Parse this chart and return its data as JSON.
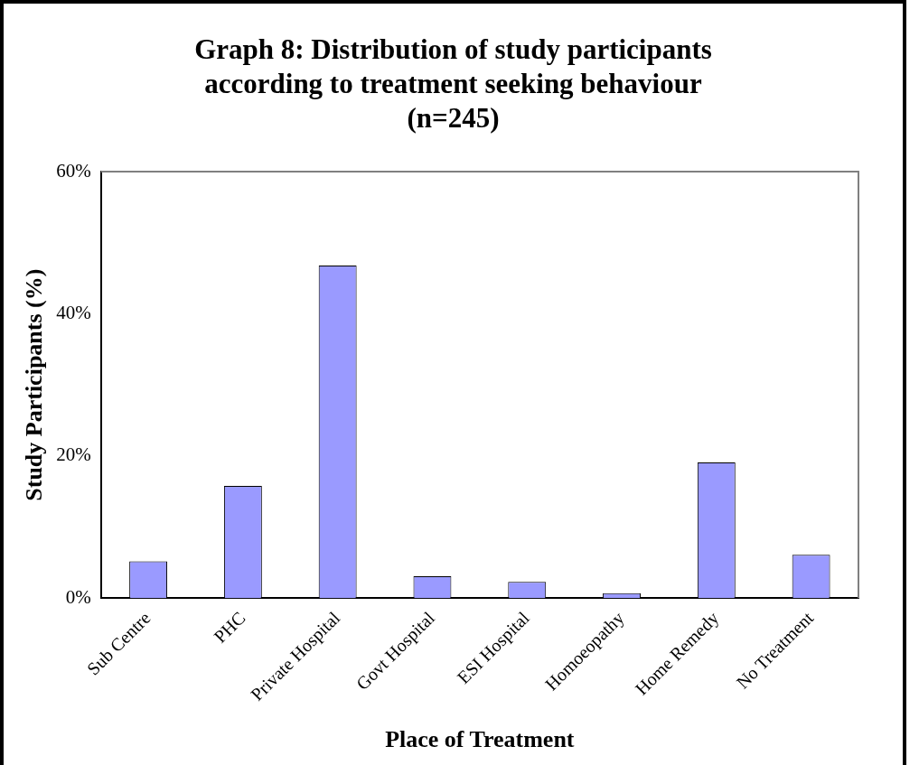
{
  "chart_data": {
    "type": "bar",
    "title": "Graph 8: Distribution of study participants according to treatment seeking behaviour (n=245)",
    "xlabel": "Place of Treatment",
    "ylabel": "Study Participants (%)",
    "categories": [
      "Sub Centre",
      "PHC",
      "Private Hospital",
      "Govt Hospital",
      "ESI Hospital",
      "Homoeopathy",
      "Home Remedy",
      "No Treatment"
    ],
    "values": [
      5.2,
      15.8,
      46.8,
      3.1,
      2.3,
      0.7,
      19.1,
      6.1
    ],
    "color": "#9a9aff",
    "ylim": [
      0,
      60
    ],
    "yticks": [
      {
        "value": 0,
        "label": "0%"
      },
      {
        "value": 20,
        "label": "20%"
      },
      {
        "value": 40,
        "label": "40%"
      },
      {
        "value": 60,
        "label": "60%"
      }
    ],
    "grid": false,
    "legend": false
  }
}
